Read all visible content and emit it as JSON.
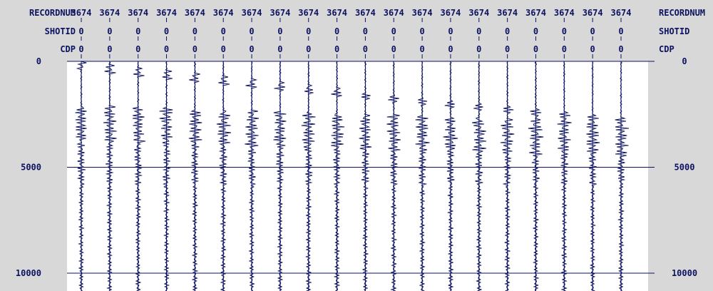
{
  "colors": {
    "background": "#d8d8d8",
    "ink": "#0c1260",
    "plot_background": "#ffffff"
  },
  "header": {
    "rows": [
      {
        "label": "RECORDNUM",
        "value": "3674"
      },
      {
        "label": "SHOTID",
        "value": "0"
      },
      {
        "label": "CDP",
        "value": "0"
      }
    ]
  },
  "chart_data": {
    "type": "seismic-wiggle",
    "trace_count": 20,
    "time_axis": {
      "ylim": [
        0,
        10000
      ],
      "ticks": [
        {
          "value": 0,
          "label": "0"
        },
        {
          "value": 5000,
          "label": "5000"
        },
        {
          "value": 10000,
          "label": "10000"
        }
      ]
    }
  }
}
